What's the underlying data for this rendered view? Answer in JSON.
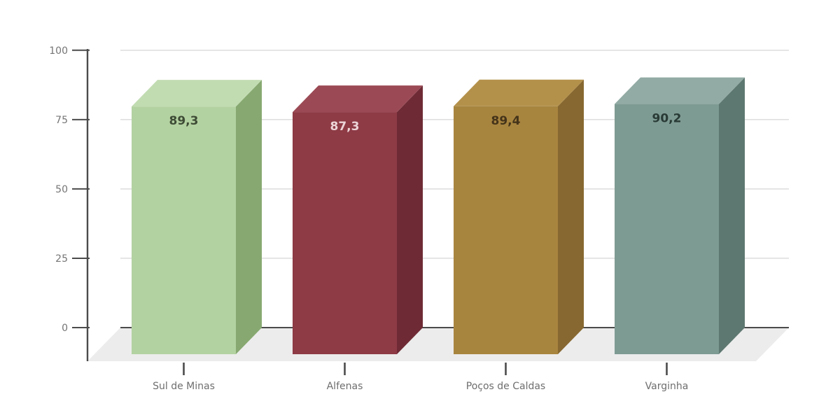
{
  "chart_data": {
    "type": "bar",
    "variant": "3d-column",
    "title": "",
    "xlabel": "",
    "ylabel": "",
    "categories": [
      "Sul de Minas",
      "Alfenas",
      "Poços de Caldas",
      "Varginha"
    ],
    "values": [
      89.3,
      87.3,
      89.4,
      90.2
    ],
    "value_labels": [
      "89,3",
      "87,3",
      "89,4",
      "90,2"
    ],
    "ylim": [
      0,
      100
    ],
    "yticks": [
      0,
      25,
      50,
      75,
      100
    ],
    "ytick_labels": [
      "0",
      "25",
      "50",
      "75",
      "100"
    ],
    "grid": true,
    "legend": false,
    "background": "#ffffff",
    "axis_color": "#4b4b4b",
    "grid_color": "#d9d9d9",
    "floor_color": "#ececec",
    "tick_label_color": "#757575",
    "category_label_color": "#6e6e6e",
    "bar_colors": [
      {
        "front": "#b3d2a1",
        "top": "#c2dcb2",
        "side": "#87a971",
        "label": "#3e4c36"
      },
      {
        "front": "#8e3b46",
        "top": "#9b4a55",
        "side": "#6f2b35",
        "label": "#ecd4d7"
      },
      {
        "front": "#a8853f",
        "top": "#b4914b",
        "side": "#876830",
        "label": "#45341a"
      },
      {
        "front": "#7e9b93",
        "top": "#92aba4",
        "side": "#5d7870",
        "label": "#293a35"
      }
    ]
  }
}
